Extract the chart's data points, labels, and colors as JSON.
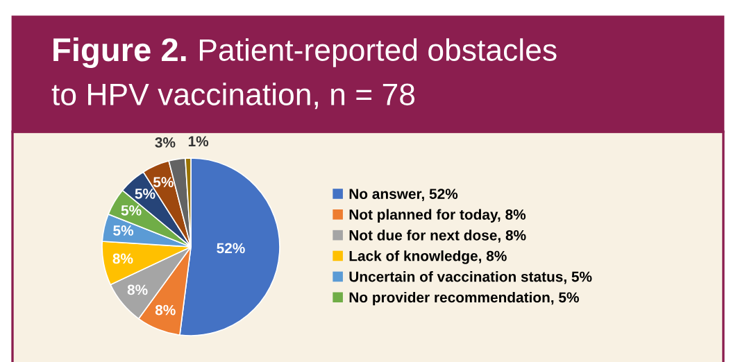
{
  "chart_data": {
    "type": "pie",
    "title": "Figure 2. Patient-reported obstacles to HPV vaccination, n = 78",
    "categories": [
      "No answer, 52%",
      "Not planned for today, 8%",
      "Not due for next dose, 8%",
      "Lack of knowledge, 8%",
      "Uncertain of vaccination status, 5%",
      "No provider recommendation, 5%",
      null,
      null,
      null,
      null
    ],
    "values": [
      52,
      8,
      8,
      8,
      5,
      5,
      5,
      5,
      3,
      1
    ],
    "value_labels": [
      "52%",
      "8%",
      "8%",
      "8%",
      "5%",
      "5%",
      "5%",
      "5%",
      "3%",
      "1%"
    ],
    "colors": [
      "#4472c4",
      "#ed7d31",
      "#a5a5a5",
      "#ffc000",
      "#5b9bd5",
      "#70ad47",
      "#264478",
      "#9e480e",
      "#636363",
      "#997300"
    ],
    "legend": "right"
  }
}
